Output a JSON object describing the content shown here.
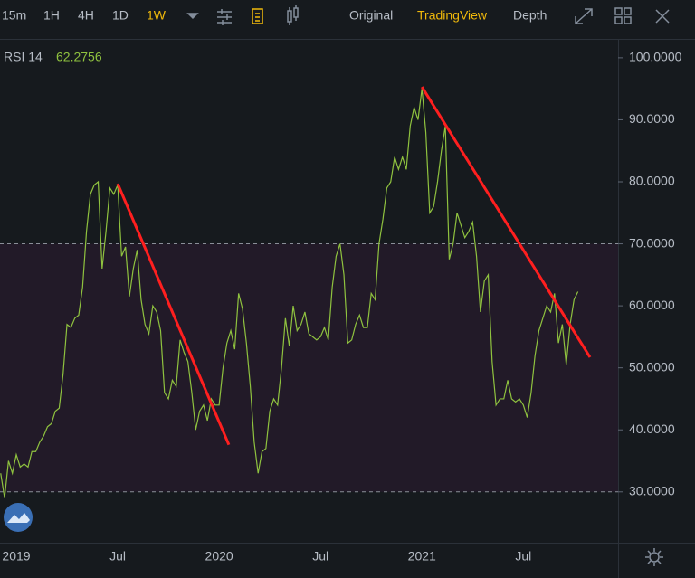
{
  "toolbar": {
    "intervals": [
      "15m",
      "1H",
      "4H",
      "1D",
      "1W"
    ],
    "active_interval": "1W",
    "views": [
      "Original",
      "TradingView",
      "Depth"
    ],
    "active_view": "TradingView"
  },
  "chart_data": {
    "type": "line",
    "indicator": {
      "name": "RSI 14",
      "value": "62.2756"
    },
    "categories": [
      null,
      null,
      null,
      null,
      "2019",
      null,
      null,
      null,
      null,
      null,
      null,
      null,
      null,
      null,
      null,
      null,
      null,
      null,
      null,
      null,
      null,
      null,
      null,
      null,
      null,
      null,
      null,
      null,
      null,
      null,
      "Jul",
      null,
      null,
      null,
      null,
      null,
      null,
      null,
      null,
      null,
      null,
      null,
      null,
      null,
      null,
      null,
      null,
      null,
      null,
      null,
      null,
      null,
      null,
      null,
      null,
      null,
      "2020",
      null,
      null,
      null,
      null,
      null,
      null,
      null,
      null,
      null,
      null,
      null,
      null,
      null,
      null,
      null,
      null,
      null,
      null,
      null,
      null,
      null,
      null,
      null,
      null,
      null,
      "Jul",
      null,
      null,
      null,
      null,
      null,
      null,
      null,
      null,
      null,
      null,
      null,
      null,
      null,
      null,
      null,
      null,
      null,
      null,
      null,
      null,
      null,
      null,
      null,
      null,
      null,
      "2021",
      null,
      null,
      null,
      null,
      null,
      null,
      null,
      null,
      null,
      null,
      null,
      null,
      null,
      null,
      null,
      null,
      null,
      null,
      null,
      null,
      null,
      null,
      null,
      null,
      null,
      "Jul",
      null,
      null,
      null,
      null,
      null,
      null,
      null,
      null,
      null,
      null,
      null,
      null,
      null,
      null
    ],
    "series": [
      {
        "name": "RSI 14",
        "color": "#8fc23f",
        "values": [
          33,
          29,
          35,
          33,
          36,
          34,
          34.5,
          34,
          36.5,
          36.5,
          38,
          39,
          40.5,
          41,
          43,
          43.5,
          49,
          57,
          56.5,
          58,
          58.5,
          63,
          72,
          78,
          79.5,
          80,
          66,
          72,
          79,
          78,
          79.5,
          68,
          69.5,
          61.5,
          66,
          69,
          61,
          57,
          55.5,
          60,
          59,
          56,
          46,
          45,
          48,
          47,
          54.5,
          52.5,
          51,
          46,
          40,
          43,
          44,
          41.5,
          45,
          44,
          44,
          50,
          54,
          56,
          53,
          62,
          59.5,
          54,
          47,
          38,
          33,
          36.5,
          37,
          43,
          45,
          44,
          50,
          58,
          53.5,
          60,
          56,
          57,
          59,
          55.5,
          55,
          54.5,
          55,
          56.5,
          54.5,
          63,
          68,
          70,
          65,
          54,
          54.5,
          57,
          58.5,
          56.5,
          56.5,
          62,
          61,
          70,
          74,
          79,
          80,
          84,
          82,
          84,
          82,
          89,
          92,
          90,
          95,
          88,
          75,
          76,
          80,
          85,
          89,
          67.5,
          70,
          75,
          73,
          71,
          72,
          73.5,
          68,
          59,
          64,
          65,
          51,
          44,
          45,
          45,
          48,
          45,
          44.5,
          45,
          44,
          42,
          46,
          52,
          56,
          58,
          60,
          59,
          62,
          54,
          57,
          50.5,
          57,
          61,
          62.2756
        ]
      }
    ],
    "ylim": [
      21.8,
      102.9
    ],
    "yticks": [
      {
        "value": 30,
        "label": "30.0000"
      },
      {
        "value": 40,
        "label": "40.0000"
      },
      {
        "value": 50,
        "label": "50.0000"
      },
      {
        "value": 60,
        "label": "60.0000"
      },
      {
        "value": 70,
        "label": "70.0000"
      },
      {
        "value": 80,
        "label": "80.0000"
      },
      {
        "value": 90,
        "label": "90.0000"
      },
      {
        "value": 100,
        "label": "100.0000"
      }
    ],
    "bands": {
      "upper": 70,
      "lower": 30,
      "fill": "#221a28"
    },
    "trendlines": [
      {
        "color": "#ff1f1f",
        "start_index": 30,
        "start_value": 79.7,
        "end_index": 58.5,
        "end_value": 37.6
      },
      {
        "color": "#ff1f1f",
        "start_index": 108,
        "start_value": 95.3,
        "end_index": 151.1,
        "end_value": 51.7
      }
    ]
  }
}
